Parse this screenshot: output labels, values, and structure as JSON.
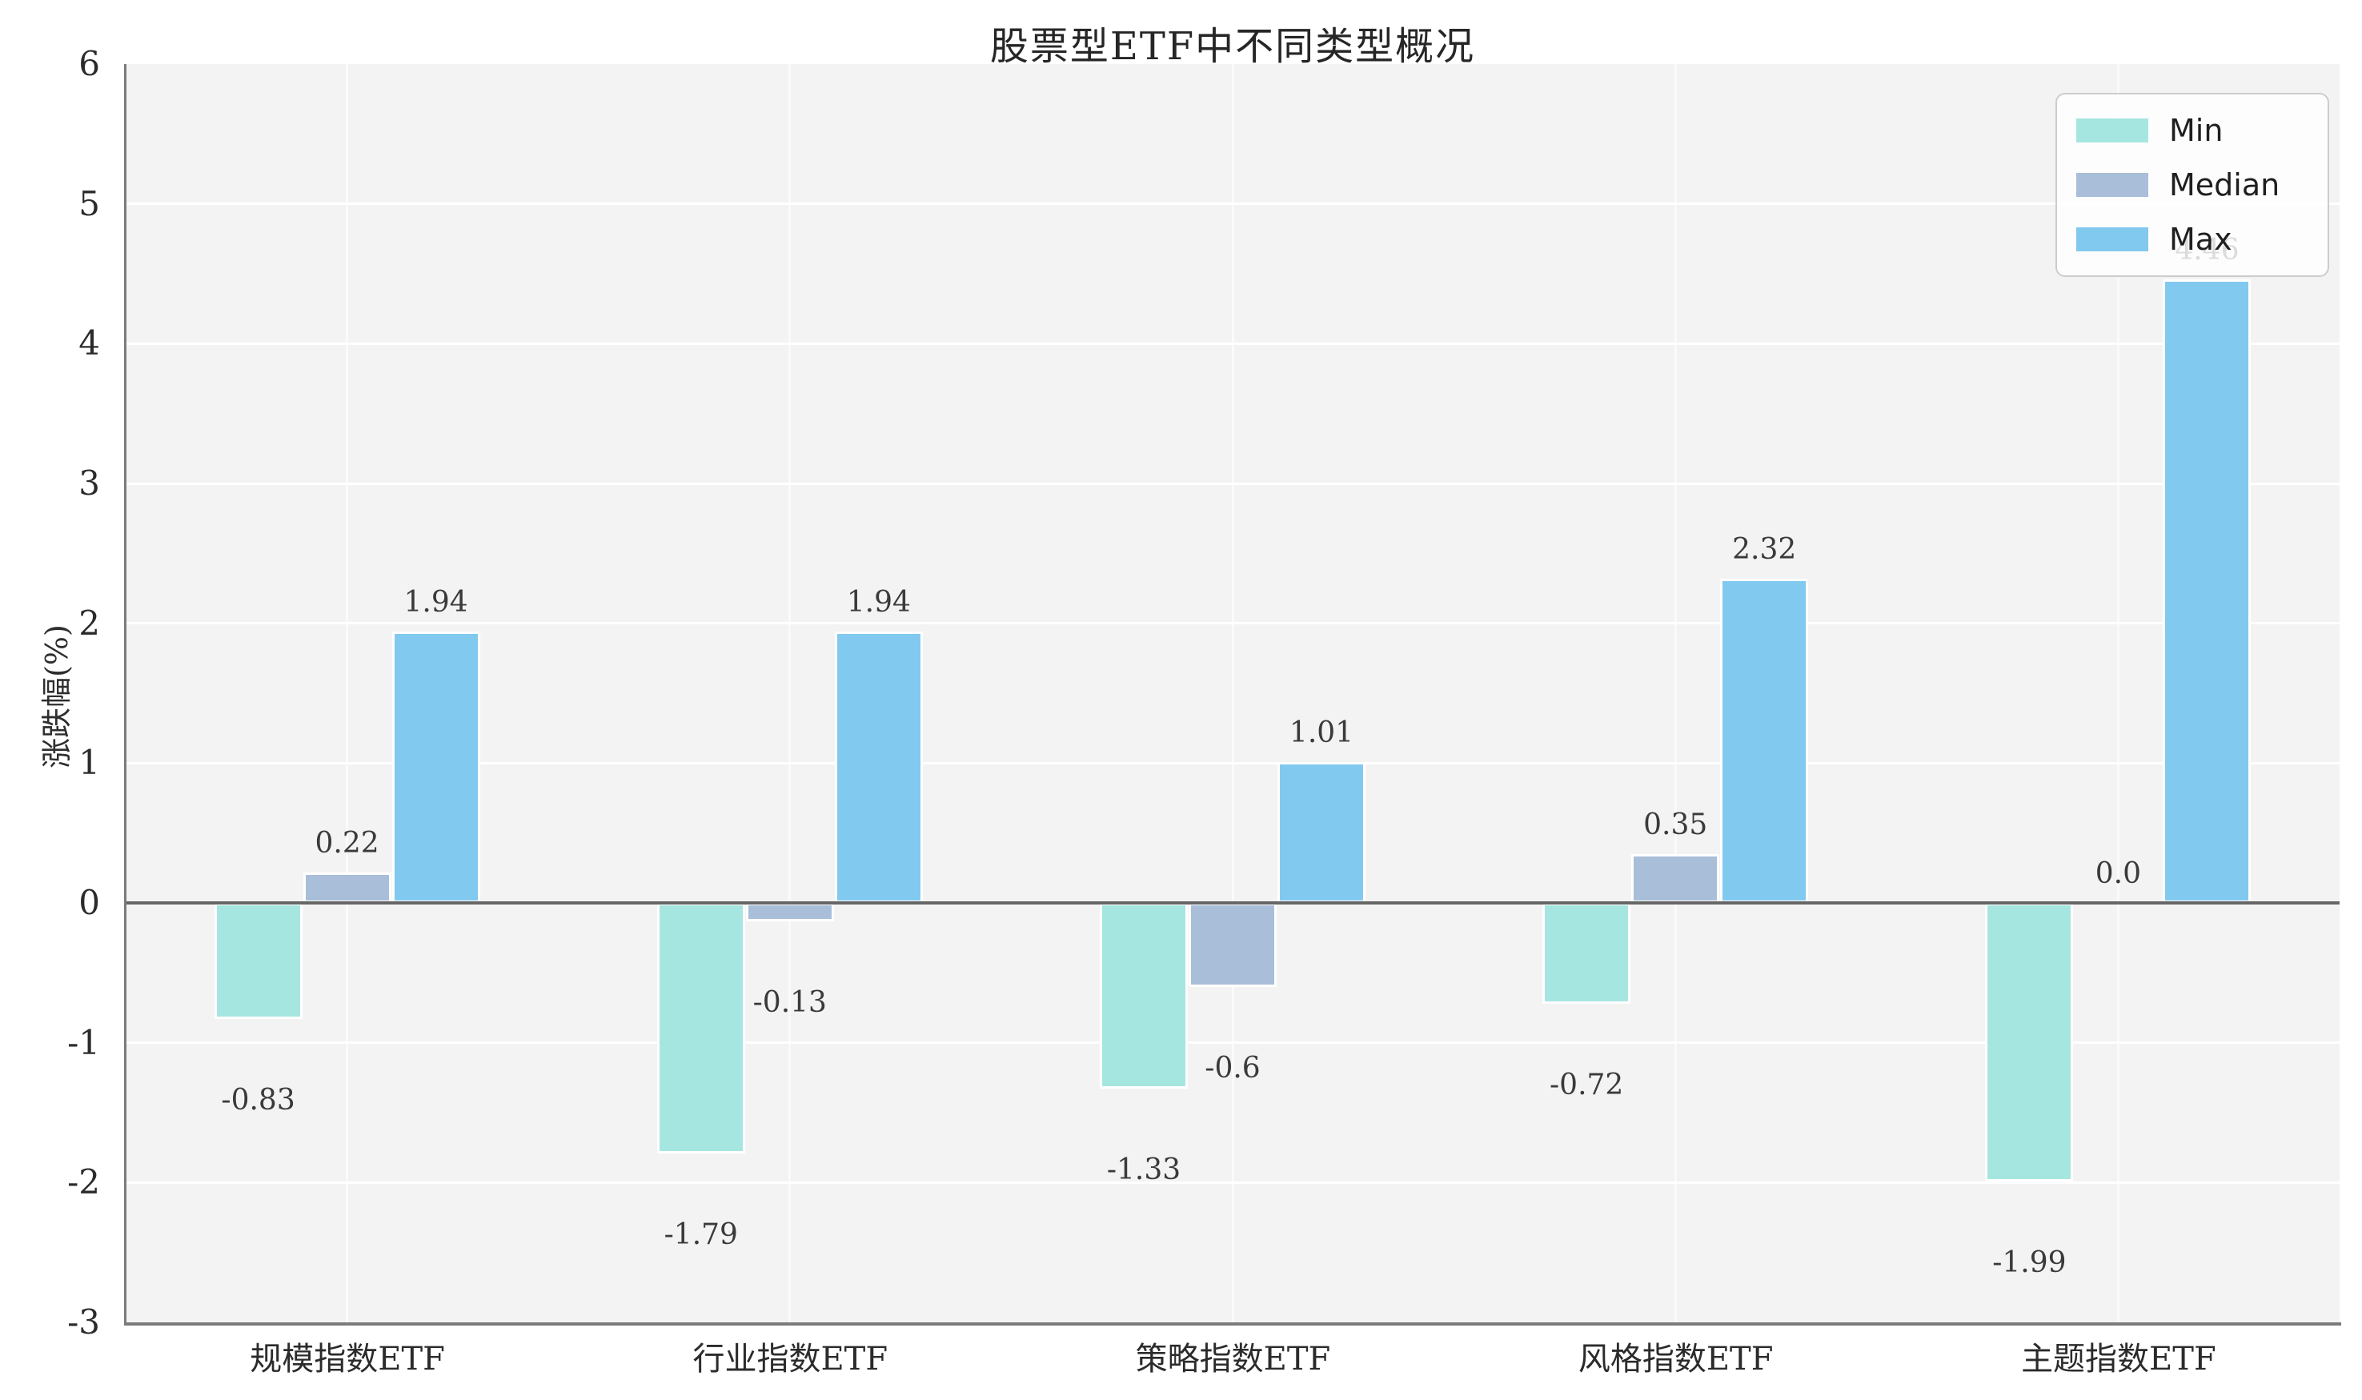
{
  "title": "股票型ETF中不同类型概况",
  "ylabel": "涨跌幅(%)",
  "chart_data": {
    "type": "bar",
    "title": "股票型ETF中不同类型概况",
    "xlabel": "",
    "ylabel": "涨跌幅(%)",
    "categories": [
      "规模指数ETF",
      "行业指数ETF",
      "策略指数ETF",
      "风格指数ETF",
      "主题指数ETF"
    ],
    "series": [
      {
        "name": "Min",
        "color": "#a6e6e1",
        "values": [
          -0.83,
          -1.79,
          -1.33,
          -0.72,
          -1.99
        ],
        "labels": [
          "-0.83",
          "-1.79",
          "-1.33",
          "-0.72",
          "-1.99"
        ]
      },
      {
        "name": "Median",
        "color": "#a9bed8",
        "values": [
          0.22,
          -0.13,
          -0.6,
          0.35,
          0.0
        ],
        "labels": [
          "0.22",
          "-0.13",
          "-0.6",
          "0.35",
          "0.0"
        ]
      },
      {
        "name": "Max",
        "color": "#82c9f0",
        "values": [
          1.94,
          1.94,
          1.01,
          2.32,
          4.46
        ],
        "labels": [
          "1.94",
          "1.94",
          "1.01",
          "2.32",
          "4.46"
        ]
      }
    ],
    "ylim": [
      -3,
      6
    ],
    "yticks": [
      6,
      5,
      4,
      3,
      2,
      1,
      0,
      -1,
      -2,
      -3
    ],
    "grid": true,
    "legend_position": "upper right",
    "zero_line": true,
    "plot_background": "#f3f3f3",
    "grid_color": "#ffffff",
    "spine_color": "#7b7b7b",
    "zero_line_color": "#666666"
  }
}
